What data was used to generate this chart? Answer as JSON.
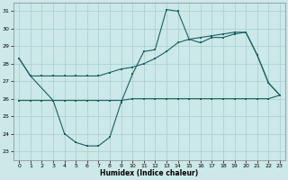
{
  "xlabel": "Humidex (Indice chaleur)",
  "xlim": [
    -0.5,
    23.5
  ],
  "ylim": [
    22.5,
    31.5
  ],
  "yticks": [
    23,
    24,
    25,
    26,
    27,
    28,
    29,
    30,
    31
  ],
  "xticks": [
    0,
    1,
    2,
    3,
    4,
    5,
    6,
    7,
    8,
    9,
    10,
    11,
    12,
    13,
    14,
    15,
    16,
    17,
    18,
    19,
    20,
    21,
    22,
    23
  ],
  "bg_color": "#cce8e8",
  "grid_color": "#a8cece",
  "line_color": "#1a6060",
  "line1_x": [
    0,
    1,
    2,
    3,
    4,
    5,
    6,
    7,
    8,
    9,
    10,
    11,
    12,
    13,
    14,
    15,
    16,
    17,
    18,
    19,
    20,
    21,
    22,
    23
  ],
  "line1_y": [
    28.3,
    27.3,
    27.3,
    27.3,
    27.3,
    27.3,
    27.3,
    27.3,
    27.5,
    27.7,
    27.8,
    28.0,
    28.3,
    28.7,
    29.2,
    29.4,
    29.5,
    29.6,
    29.7,
    29.8,
    29.8,
    28.5,
    26.9,
    26.2
  ],
  "line2_x": [
    0,
    1,
    3,
    4,
    5,
    6,
    7,
    8,
    9,
    10,
    11,
    12,
    13,
    14,
    15,
    16,
    17,
    18,
    19,
    20,
    21,
    22,
    23
  ],
  "line2_y": [
    28.3,
    27.3,
    25.9,
    24.0,
    23.5,
    23.3,
    23.3,
    23.8,
    25.8,
    27.4,
    28.7,
    28.8,
    31.1,
    31.0,
    29.4,
    29.2,
    29.5,
    29.5,
    29.7,
    29.8,
    28.5,
    26.9,
    26.2
  ],
  "line3_x": [
    0,
    1,
    2,
    3,
    4,
    5,
    6,
    7,
    8,
    9,
    10,
    11,
    12,
    13,
    14,
    15,
    16,
    17,
    18,
    19,
    20,
    21,
    22,
    23
  ],
  "line3_y": [
    25.9,
    25.9,
    25.9,
    25.9,
    25.9,
    25.9,
    25.9,
    25.9,
    25.9,
    25.9,
    26.0,
    26.0,
    26.0,
    26.0,
    26.0,
    26.0,
    26.0,
    26.0,
    26.0,
    26.0,
    26.0,
    26.0,
    26.0,
    26.2
  ]
}
